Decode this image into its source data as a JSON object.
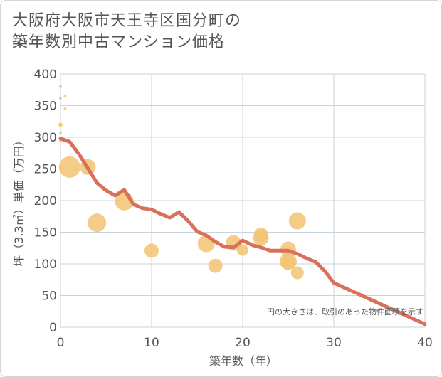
{
  "title_lines": [
    "大阪府大阪市天王寺区国分町の",
    "築年数別中古マンション価格"
  ],
  "chart_data": {
    "type": "scatter+line",
    "xlabel": "築年数（年）",
    "ylabel": "坪（3.3㎡）単価（万円）",
    "xlim": [
      0,
      40
    ],
    "ylim": [
      0,
      400
    ],
    "x_ticks": [
      0,
      10,
      20,
      30,
      40
    ],
    "y_ticks": [
      0,
      50,
      100,
      150,
      200,
      250,
      300,
      350,
      400
    ],
    "grid": true,
    "annotation": "円の大きさは、取引のあった物件面積を示す",
    "scatter": [
      {
        "x": 0,
        "y": 380,
        "size": 2
      },
      {
        "x": 0,
        "y": 362,
        "size": 2
      },
      {
        "x": 0,
        "y": 320,
        "size": 3
      },
      {
        "x": 0,
        "y": 307,
        "size": 2
      },
      {
        "x": 0,
        "y": 295,
        "size": 2
      },
      {
        "x": 0.5,
        "y": 365,
        "size": 2
      },
      {
        "x": 0.5,
        "y": 345,
        "size": 2
      },
      {
        "x": 1,
        "y": 253,
        "size": 15
      },
      {
        "x": 3,
        "y": 253,
        "size": 11
      },
      {
        "x": 4,
        "y": 165,
        "size": 13
      },
      {
        "x": 7,
        "y": 199,
        "size": 13
      },
      {
        "x": 10,
        "y": 121,
        "size": 10
      },
      {
        "x": 16,
        "y": 132,
        "size": 12
      },
      {
        "x": 17,
        "y": 97,
        "size": 10
      },
      {
        "x": 19,
        "y": 133,
        "size": 11
      },
      {
        "x": 20,
        "y": 122,
        "size": 8
      },
      {
        "x": 22,
        "y": 146,
        "size": 10
      },
      {
        "x": 22,
        "y": 141,
        "size": 11
      },
      {
        "x": 25,
        "y": 123,
        "size": 11
      },
      {
        "x": 25,
        "y": 104,
        "size": 12
      },
      {
        "x": 25,
        "y": 101,
        "size": 9
      },
      {
        "x": 26,
        "y": 168,
        "size": 12
      },
      {
        "x": 26,
        "y": 86,
        "size": 9
      }
    ],
    "trend": {
      "x": [
        0,
        1,
        2,
        3,
        4,
        5,
        6,
        7,
        8,
        9,
        10,
        11,
        12,
        13,
        14,
        15,
        16,
        17,
        18,
        19,
        20,
        21,
        22,
        23,
        24,
        25,
        26,
        27,
        28,
        29,
        30,
        40
      ],
      "y": [
        298,
        293,
        274,
        251,
        228,
        216,
        208,
        217,
        194,
        188,
        186,
        179,
        173,
        182,
        168,
        151,
        145,
        135,
        127,
        126,
        137,
        130,
        126,
        121,
        121,
        121,
        116,
        109,
        103,
        89,
        70,
        5
      ]
    },
    "colors": {
      "scatter": "#f2c372",
      "trend": "#d9705a",
      "grid": "#c8d3dc",
      "axis_text": "#555555"
    }
  }
}
